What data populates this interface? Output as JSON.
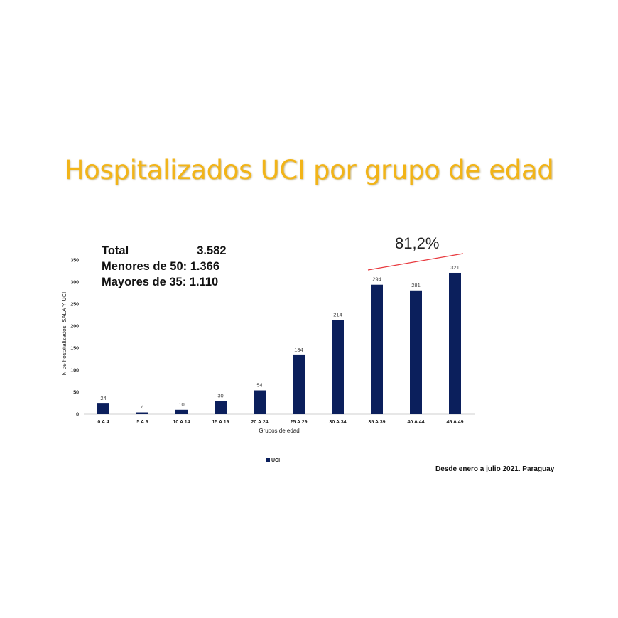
{
  "header": {
    "title": "Hospitalizados UCI por grupo de edad"
  },
  "stats": {
    "total_label": "Total",
    "total_value": "3.582",
    "menores_label": "Menores de 50:",
    "menores_value": "1.366",
    "mayores_label": "Mayores de 35:",
    "mayores_value": "1.110"
  },
  "annotation": {
    "percent": "81,2%",
    "line_color": "#e8383d"
  },
  "footer": {
    "source": "Desde enero a julio 2021. Paraguay"
  },
  "chart_data": {
    "type": "bar",
    "title": "Hospitalizados UCI por grupo de edad",
    "xlabel": "Grupos de edad",
    "ylabel": "N de hospitalizados. SALA Y UCI",
    "ylim": [
      0,
      350
    ],
    "yticks": [
      0,
      50,
      100,
      150,
      200,
      250,
      300,
      350
    ],
    "grid": false,
    "legend_position": "bottom",
    "categories": [
      "0 A 4",
      "5 A 9",
      "10 A 14",
      "15 A 19",
      "20 A 24",
      "25 A 29",
      "30 A 34",
      "35 A 39",
      "40 A 44",
      "45 A 49"
    ],
    "series": [
      {
        "name": "UCI",
        "color": "#0b1f5c",
        "values": [
          24,
          4,
          10,
          30,
          54,
          134,
          214,
          294,
          281,
          321
        ]
      }
    ]
  }
}
